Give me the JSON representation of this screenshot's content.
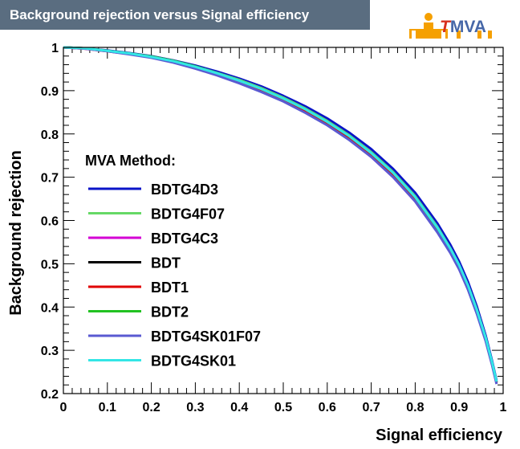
{
  "header": {
    "title": "Background rejection versus Signal efficiency"
  },
  "logo": {
    "t": "T",
    "rest": "MVA"
  },
  "chart_data": {
    "type": "line",
    "title": "Background rejection versus Signal efficiency",
    "xlabel": "Signal efficiency",
    "ylabel": "Background rejection",
    "xlim": [
      0,
      1
    ],
    "ylim": [
      0.2,
      1
    ],
    "x_ticks": [
      "0",
      "0.1",
      "0.2",
      "0.3",
      "0.4",
      "0.5",
      "0.6",
      "0.7",
      "0.8",
      "0.9",
      "1"
    ],
    "y_ticks": [
      "0.2",
      "0.3",
      "0.4",
      "0.5",
      "0.6",
      "0.7",
      "0.8",
      "0.9",
      "1"
    ],
    "legend_title": "MVA Method:",
    "legend_position": "left",
    "series": [
      {
        "name": "BDTG4D3",
        "color": "#0a14c8",
        "x": [
          0,
          0.05,
          0.1,
          0.15,
          0.2,
          0.25,
          0.3,
          0.35,
          0.4,
          0.45,
          0.5,
          0.55,
          0.6,
          0.65,
          0.7,
          0.75,
          0.8,
          0.85,
          0.88,
          0.9,
          0.92,
          0.94,
          0.96,
          0.975,
          0.985
        ],
        "y": [
          1.0,
          0.998,
          0.993,
          0.987,
          0.98,
          0.97,
          0.958,
          0.944,
          0.928,
          0.91,
          0.888,
          0.864,
          0.836,
          0.803,
          0.765,
          0.719,
          0.664,
          0.594,
          0.544,
          0.505,
          0.458,
          0.402,
          0.335,
          0.275,
          0.23
        ]
      },
      {
        "name": "BDTG4F07",
        "color": "#66d966",
        "x": [
          0,
          0.05,
          0.1,
          0.15,
          0.2,
          0.25,
          0.3,
          0.35,
          0.4,
          0.45,
          0.5,
          0.55,
          0.6,
          0.65,
          0.7,
          0.75,
          0.8,
          0.85,
          0.88,
          0.9,
          0.92,
          0.94,
          0.96,
          0.975,
          0.985
        ],
        "y": [
          1.0,
          0.998,
          0.992,
          0.986,
          0.979,
          0.969,
          0.956,
          0.941,
          0.925,
          0.906,
          0.884,
          0.859,
          0.83,
          0.797,
          0.758,
          0.712,
          0.656,
          0.586,
          0.536,
          0.497,
          0.45,
          0.395,
          0.33,
          0.27,
          0.225
        ]
      },
      {
        "name": "BDTG4C3",
        "color": "#d400d4",
        "x": [
          0,
          0.05,
          0.1,
          0.15,
          0.2,
          0.25,
          0.3,
          0.35,
          0.4,
          0.45,
          0.5,
          0.55,
          0.6,
          0.65,
          0.7,
          0.75,
          0.8,
          0.85,
          0.88,
          0.9,
          0.92,
          0.94,
          0.96,
          0.975,
          0.985
        ],
        "y": [
          1.0,
          0.997,
          0.991,
          0.985,
          0.977,
          0.966,
          0.953,
          0.937,
          0.92,
          0.9,
          0.877,
          0.851,
          0.821,
          0.787,
          0.747,
          0.7,
          0.644,
          0.574,
          0.526,
          0.488,
          0.442,
          0.388,
          0.325,
          0.268,
          0.225
        ]
      },
      {
        "name": "BDT",
        "color": "#000000",
        "x": [
          0,
          0.05,
          0.1,
          0.15,
          0.2,
          0.25,
          0.3,
          0.35,
          0.4,
          0.45,
          0.5,
          0.55,
          0.6,
          0.65,
          0.7,
          0.75,
          0.8,
          0.85,
          0.88,
          0.9,
          0.92,
          0.94,
          0.96,
          0.975,
          0.985
        ],
        "y": [
          1.0,
          0.998,
          0.992,
          0.986,
          0.978,
          0.968,
          0.955,
          0.939,
          0.922,
          0.903,
          0.881,
          0.856,
          0.826,
          0.793,
          0.754,
          0.707,
          0.651,
          0.58,
          0.531,
          0.492,
          0.445,
          0.39,
          0.327,
          0.27,
          0.226
        ]
      },
      {
        "name": "BDT1",
        "color": "#e00000",
        "x": [
          0,
          0.05,
          0.1,
          0.15,
          0.2,
          0.25,
          0.3,
          0.35,
          0.4,
          0.45,
          0.5,
          0.55,
          0.6,
          0.65,
          0.7,
          0.75,
          0.8,
          0.85,
          0.88,
          0.9,
          0.92,
          0.94,
          0.96,
          0.975,
          0.985
        ],
        "y": [
          1.0,
          0.997,
          0.991,
          0.985,
          0.977,
          0.967,
          0.954,
          0.938,
          0.921,
          0.901,
          0.879,
          0.853,
          0.823,
          0.789,
          0.75,
          0.703,
          0.648,
          0.579,
          0.532,
          0.495,
          0.449,
          0.393,
          0.328,
          0.27,
          0.226
        ]
      },
      {
        "name": "BDT2",
        "color": "#22c222",
        "x": [
          0,
          0.05,
          0.1,
          0.15,
          0.2,
          0.25,
          0.3,
          0.35,
          0.4,
          0.45,
          0.5,
          0.55,
          0.6,
          0.65,
          0.7,
          0.75,
          0.8,
          0.85,
          0.88,
          0.9,
          0.92,
          0.94,
          0.96,
          0.975,
          0.985
        ],
        "y": [
          1.0,
          0.998,
          0.992,
          0.986,
          0.979,
          0.969,
          0.956,
          0.94,
          0.923,
          0.904,
          0.882,
          0.857,
          0.828,
          0.795,
          0.756,
          0.71,
          0.654,
          0.583,
          0.534,
          0.495,
          0.448,
          0.392,
          0.328,
          0.27,
          0.226
        ]
      },
      {
        "name": "BDTG4SK01F07",
        "color": "#5a5ad2",
        "x": [
          0,
          0.05,
          0.1,
          0.15,
          0.2,
          0.25,
          0.3,
          0.35,
          0.4,
          0.45,
          0.5,
          0.55,
          0.6,
          0.65,
          0.7,
          0.75,
          0.8,
          0.85,
          0.88,
          0.9,
          0.92,
          0.94,
          0.96,
          0.975,
          0.985
        ],
        "y": [
          1.0,
          0.997,
          0.991,
          0.984,
          0.976,
          0.965,
          0.951,
          0.935,
          0.917,
          0.897,
          0.875,
          0.849,
          0.82,
          0.786,
          0.747,
          0.7,
          0.644,
          0.573,
          0.525,
          0.487,
          0.44,
          0.385,
          0.322,
          0.265,
          0.222
        ]
      },
      {
        "name": "BDTG4SK01",
        "color": "#33e6e6",
        "x": [
          0,
          0.05,
          0.1,
          0.15,
          0.2,
          0.25,
          0.3,
          0.35,
          0.4,
          0.45,
          0.5,
          0.55,
          0.6,
          0.65,
          0.7,
          0.75,
          0.8,
          0.85,
          0.88,
          0.9,
          0.92,
          0.94,
          0.96,
          0.975,
          0.985
        ],
        "y": [
          1.0,
          0.998,
          0.992,
          0.986,
          0.978,
          0.968,
          0.955,
          0.94,
          0.923,
          0.904,
          0.882,
          0.857,
          0.828,
          0.795,
          0.756,
          0.71,
          0.654,
          0.584,
          0.535,
          0.497,
          0.45,
          0.394,
          0.33,
          0.272,
          0.228
        ]
      }
    ]
  }
}
